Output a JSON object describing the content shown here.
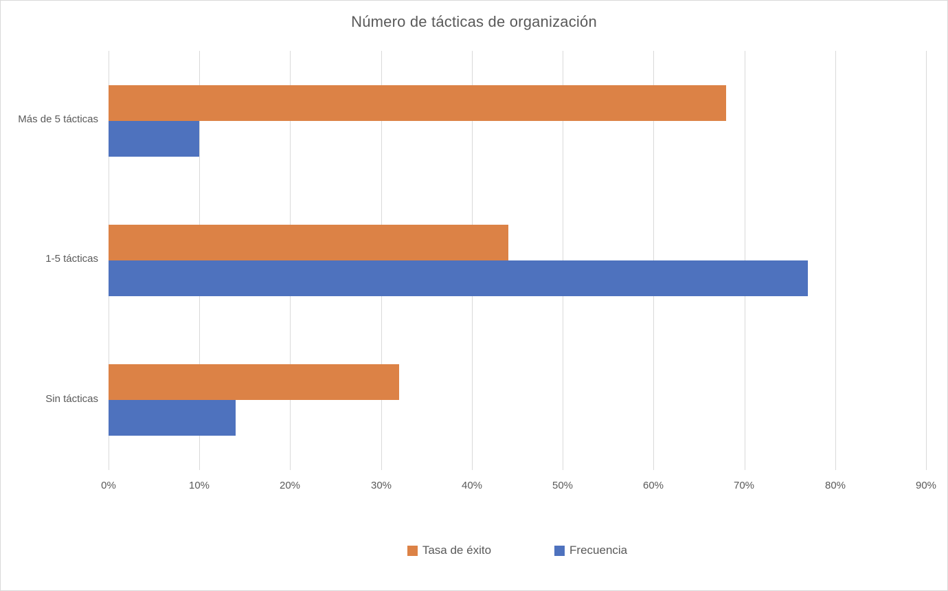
{
  "chart_data": {
    "type": "bar",
    "orientation": "horizontal",
    "title": "Número de tácticas de organización",
    "categories": [
      "Más de 5 tácticas",
      "1-5 tácticas",
      "Sin tácticas"
    ],
    "series": [
      {
        "name": "Tasa de éxito",
        "color": "#dc8246",
        "values": [
          68,
          44,
          32
        ]
      },
      {
        "name": "Frecuencia",
        "color": "#4e72be",
        "values": [
          10,
          77,
          14
        ]
      }
    ],
    "xlabel": "",
    "ylabel": "",
    "xlim": [
      0,
      90
    ],
    "x_tick_step": 10,
    "x_ticks": [
      "0%",
      "10%",
      "20%",
      "30%",
      "40%",
      "50%",
      "60%",
      "70%",
      "80%",
      "90%"
    ],
    "grid": "vertical-only",
    "gridline_color": "#d9d9d9",
    "legend_position": "bottom"
  }
}
